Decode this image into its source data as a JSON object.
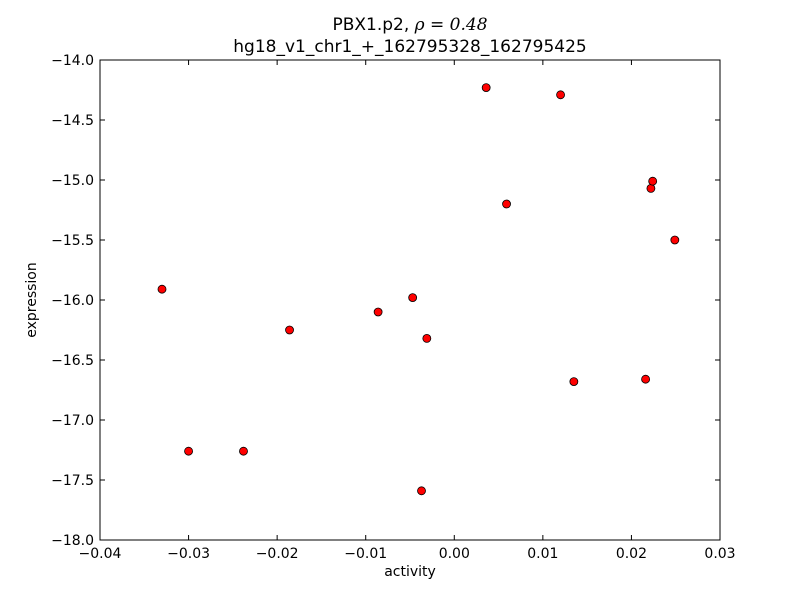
{
  "chart_data": {
    "type": "scatter",
    "title": "PBX1.p2, ρ = 0.48",
    "title_parts": {
      "prefix": "PBX1.p2, ",
      "math": "ρ = 0.48"
    },
    "subtitle": "hg18_v1_chr1_+_162795328_162795425",
    "xlabel": "activity",
    "ylabel": "expression",
    "xlim": [
      -0.04,
      0.03
    ],
    "ylim": [
      -18.0,
      -14.0
    ],
    "xticks": [
      -0.04,
      -0.03,
      -0.02,
      -0.01,
      0.0,
      0.01,
      0.02,
      0.03
    ],
    "yticks": [
      -18.0,
      -17.5,
      -17.0,
      -16.5,
      -16.0,
      -15.5,
      -15.0,
      -14.5,
      -14.0
    ],
    "xtick_labels": [
      "−0.04",
      "−0.03",
      "−0.02",
      "−0.01",
      "0.00",
      "0.01",
      "0.02",
      "0.03"
    ],
    "ytick_labels": [
      "−18.0",
      "−17.5",
      "−17.0",
      "−16.5",
      "−16.0",
      "−15.5",
      "−15.0",
      "−14.5",
      "−14.0"
    ],
    "grid": false,
    "marker_color": "#ff0000",
    "marker_edge_color": "#000000",
    "points": [
      {
        "x": -0.033,
        "y": -15.91
      },
      {
        "x": -0.03,
        "y": -17.26
      },
      {
        "x": -0.0238,
        "y": -17.26
      },
      {
        "x": -0.0186,
        "y": -16.25
      },
      {
        "x": -0.0086,
        "y": -16.1
      },
      {
        "x": -0.0047,
        "y": -15.98
      },
      {
        "x": -0.0037,
        "y": -17.59
      },
      {
        "x": -0.0031,
        "y": -16.32
      },
      {
        "x": 0.0036,
        "y": -14.23
      },
      {
        "x": 0.0059,
        "y": -15.2
      },
      {
        "x": 0.012,
        "y": -14.29
      },
      {
        "x": 0.0135,
        "y": -16.68
      },
      {
        "x": 0.0216,
        "y": -16.66
      },
      {
        "x": 0.0222,
        "y": -15.07
      },
      {
        "x": 0.0224,
        "y": -15.01
      },
      {
        "x": 0.0249,
        "y": -15.5
      }
    ]
  }
}
